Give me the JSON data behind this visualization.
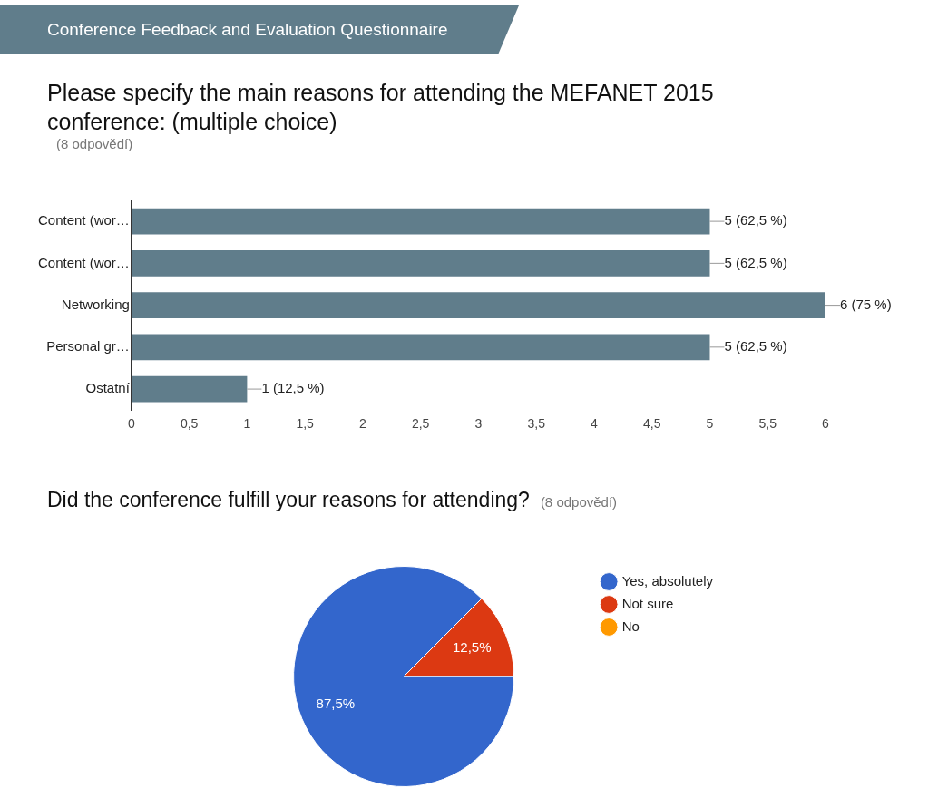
{
  "chart_data": [
    {
      "type": "bar",
      "orientation": "horizontal",
      "title": "Please specify the main reasons for attending the MEFANET 2015 conference: (multiple choice)",
      "subtitle": "(8 odpovědí)",
      "annotations": [
        "Conference Feedback and Evaluation Questionnaire"
      ],
      "categories": [
        "Content (wor…",
        "Content (wor…",
        "Networking",
        "Personal gr…",
        "Ostatní"
      ],
      "values": [
        5,
        5,
        6,
        5,
        1
      ],
      "color": "#607d8b",
      "value_labels": [
        "5 (62,5 %)",
        "5 (62,5 %)",
        "6 (75 %)",
        "5 (62,5 %)",
        "1 (12,5 %)"
      ],
      "xlim": [
        0,
        6
      ],
      "xticks": [
        0,
        {
          "value": 0.5,
          "label": "0,5"
        },
        1,
        {
          "value": 1.5,
          "label": "1,5"
        },
        2,
        {
          "value": 2.5,
          "label": "2,5"
        },
        3,
        {
          "value": 3.5,
          "label": "3,5"
        },
        4,
        {
          "value": 4.5,
          "label": "4,5"
        },
        5,
        {
          "value": 5.5,
          "label": "5,5"
        },
        6
      ],
      "grid": false,
      "legend": false
    },
    {
      "type": "pie",
      "title": "Did the conference fulfill your reasons for attending?",
      "subtitle": "(8 odpovědí)",
      "categories": [
        "Yes, absolutely",
        "Not sure",
        "No"
      ],
      "values": [
        87.5,
        12.5,
        0
      ],
      "colors": [
        "#3366cc",
        "#dc3912",
        "#ff9900"
      ],
      "value_labels": [
        "87,5%",
        "12,5%",
        null
      ],
      "legend": "top right"
    }
  ]
}
